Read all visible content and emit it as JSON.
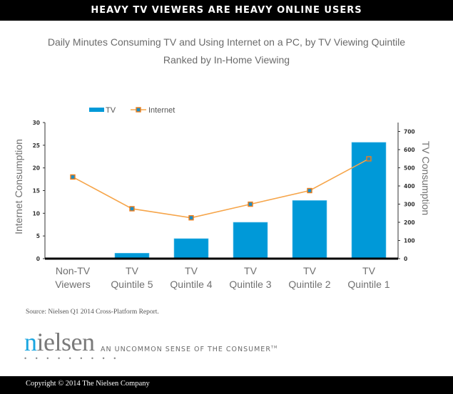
{
  "header": {
    "title": "HEAVY TV VIEWERS ARE HEAVY ONLINE USERS"
  },
  "chart_title": {
    "line1": "Daily Minutes Consuming TV and Using Internet on a PC, by TV Viewing Quintile",
    "line2": "Ranked by In-Home Viewing"
  },
  "source": "Source: Nielsen Q1 2014 Cross-Platform Report.",
  "logo": {
    "word_first": "n",
    "word_rest": "ielsen",
    "dots": "• • • • • • • • •",
    "tagline": "AN UNCOMMON SENSE OF THE CONSUMER",
    "tm": "TM"
  },
  "footer": {
    "copyright": "Copyright © 2014 The Nielsen Company"
  },
  "colors": {
    "bar": "#0099d8",
    "line": "#f6a54a",
    "marker_border": "#ee7d1a",
    "marker_fill": "#1a8fc8",
    "axis": "#333333",
    "label": "#707070"
  },
  "chart_data": {
    "type": "bar",
    "title": "Daily Minutes Consuming TV and Using Internet on a PC, by TV Viewing Quintile",
    "subtitle": "Ranked by In-Home Viewing",
    "categories": [
      [
        "Non-TV",
        "Viewers"
      ],
      [
        "TV",
        "Quintile 5"
      ],
      [
        "TV",
        "Quintile 4"
      ],
      [
        "TV",
        "Quintile 3"
      ],
      [
        "TV",
        "Quintile 2"
      ],
      [
        "TV",
        "Quintile 1"
      ]
    ],
    "series": [
      {
        "name": "TV",
        "type": "bar",
        "axis": "right",
        "values": [
          0,
          30,
          110,
          200,
          320,
          640
        ]
      },
      {
        "name": "Internet",
        "type": "line",
        "axis": "left",
        "values": [
          18,
          11,
          9,
          12,
          15,
          22
        ]
      }
    ],
    "left_axis": {
      "label": "Internet Consumption",
      "ylim": [
        0,
        30
      ],
      "ticks": [
        0,
        5,
        10,
        15,
        20,
        25,
        30
      ]
    },
    "right_axis": {
      "label": "TV Consumption",
      "ylim": [
        0,
        700
      ],
      "ticks": [
        0,
        100,
        200,
        300,
        400,
        500,
        600,
        700
      ]
    },
    "legend": {
      "position": "top-left",
      "entries": [
        "TV",
        "Internet"
      ]
    },
    "grid": false
  }
}
